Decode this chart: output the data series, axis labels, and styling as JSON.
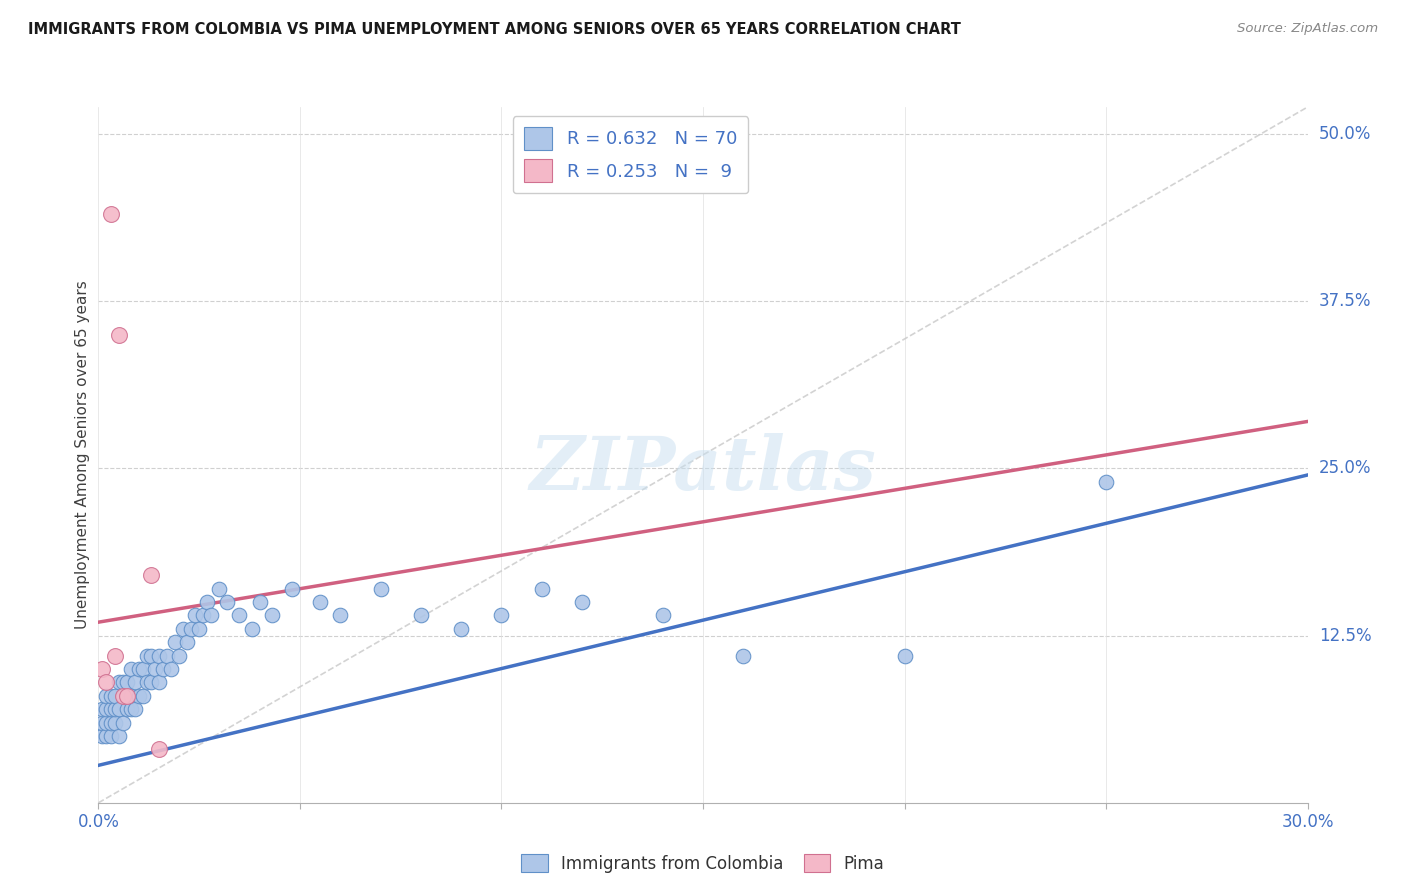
{
  "title": "IMMIGRANTS FROM COLOMBIA VS PIMA UNEMPLOYMENT AMONG SENIORS OVER 65 YEARS CORRELATION CHART",
  "source": "Source: ZipAtlas.com",
  "ylabel": "Unemployment Among Seniors over 65 years",
  "xlim": [
    0.0,
    0.3
  ],
  "ylim": [
    0.0,
    0.52
  ],
  "xticks": [
    0.0,
    0.05,
    0.1,
    0.15,
    0.2,
    0.25,
    0.3
  ],
  "xticklabels": [
    "0.0%",
    "",
    "",
    "",
    "",
    "",
    "30.0%"
  ],
  "yticks": [
    0.0,
    0.125,
    0.25,
    0.375,
    0.5
  ],
  "yticklabels": [
    "",
    "12.5%",
    "25.0%",
    "37.5%",
    "50.0%"
  ],
  "blue_color": "#aec6e8",
  "blue_edge_color": "#6090c8",
  "blue_line_color": "#4472c4",
  "pink_color": "#f4b8c8",
  "pink_edge_color": "#d07090",
  "pink_line_color": "#d06080",
  "dashed_line_color": "#c8c8c8",
  "legend_R_blue": "0.632",
  "legend_N_blue": "70",
  "legend_R_pink": "0.253",
  "legend_N_pink": "9",
  "watermark_text": "ZIPatlas",
  "blue_scatter_x": [
    0.001,
    0.001,
    0.001,
    0.002,
    0.002,
    0.002,
    0.002,
    0.003,
    0.003,
    0.003,
    0.003,
    0.004,
    0.004,
    0.004,
    0.005,
    0.005,
    0.005,
    0.006,
    0.006,
    0.006,
    0.007,
    0.007,
    0.008,
    0.008,
    0.008,
    0.009,
    0.009,
    0.01,
    0.01,
    0.011,
    0.011,
    0.012,
    0.012,
    0.013,
    0.013,
    0.014,
    0.015,
    0.015,
    0.016,
    0.017,
    0.018,
    0.019,
    0.02,
    0.021,
    0.022,
    0.023,
    0.024,
    0.025,
    0.026,
    0.027,
    0.028,
    0.03,
    0.032,
    0.035,
    0.038,
    0.04,
    0.043,
    0.048,
    0.055,
    0.06,
    0.07,
    0.08,
    0.09,
    0.1,
    0.11,
    0.12,
    0.14,
    0.16,
    0.2,
    0.25
  ],
  "blue_scatter_y": [
    0.05,
    0.06,
    0.07,
    0.05,
    0.06,
    0.07,
    0.08,
    0.05,
    0.06,
    0.07,
    0.08,
    0.06,
    0.07,
    0.08,
    0.05,
    0.07,
    0.09,
    0.06,
    0.08,
    0.09,
    0.07,
    0.09,
    0.07,
    0.08,
    0.1,
    0.07,
    0.09,
    0.08,
    0.1,
    0.08,
    0.1,
    0.09,
    0.11,
    0.09,
    0.11,
    0.1,
    0.09,
    0.11,
    0.1,
    0.11,
    0.1,
    0.12,
    0.11,
    0.13,
    0.12,
    0.13,
    0.14,
    0.13,
    0.14,
    0.15,
    0.14,
    0.16,
    0.15,
    0.14,
    0.13,
    0.15,
    0.14,
    0.16,
    0.15,
    0.14,
    0.16,
    0.14,
    0.13,
    0.14,
    0.16,
    0.15,
    0.14,
    0.11,
    0.11,
    0.24
  ],
  "pink_scatter_x": [
    0.001,
    0.002,
    0.003,
    0.004,
    0.005,
    0.006,
    0.007,
    0.013,
    0.015
  ],
  "pink_scatter_y": [
    0.1,
    0.09,
    0.44,
    0.11,
    0.35,
    0.08,
    0.08,
    0.17,
    0.04
  ],
  "blue_trendline_x": [
    0.0,
    0.3
  ],
  "blue_trendline_y": [
    0.028,
    0.245
  ],
  "pink_trendline_x": [
    0.0,
    0.3
  ],
  "pink_trendline_y": [
    0.135,
    0.285
  ],
  "dashed_line_x": [
    0.0,
    0.3
  ],
  "dashed_line_y": [
    0.0,
    0.52
  ]
}
